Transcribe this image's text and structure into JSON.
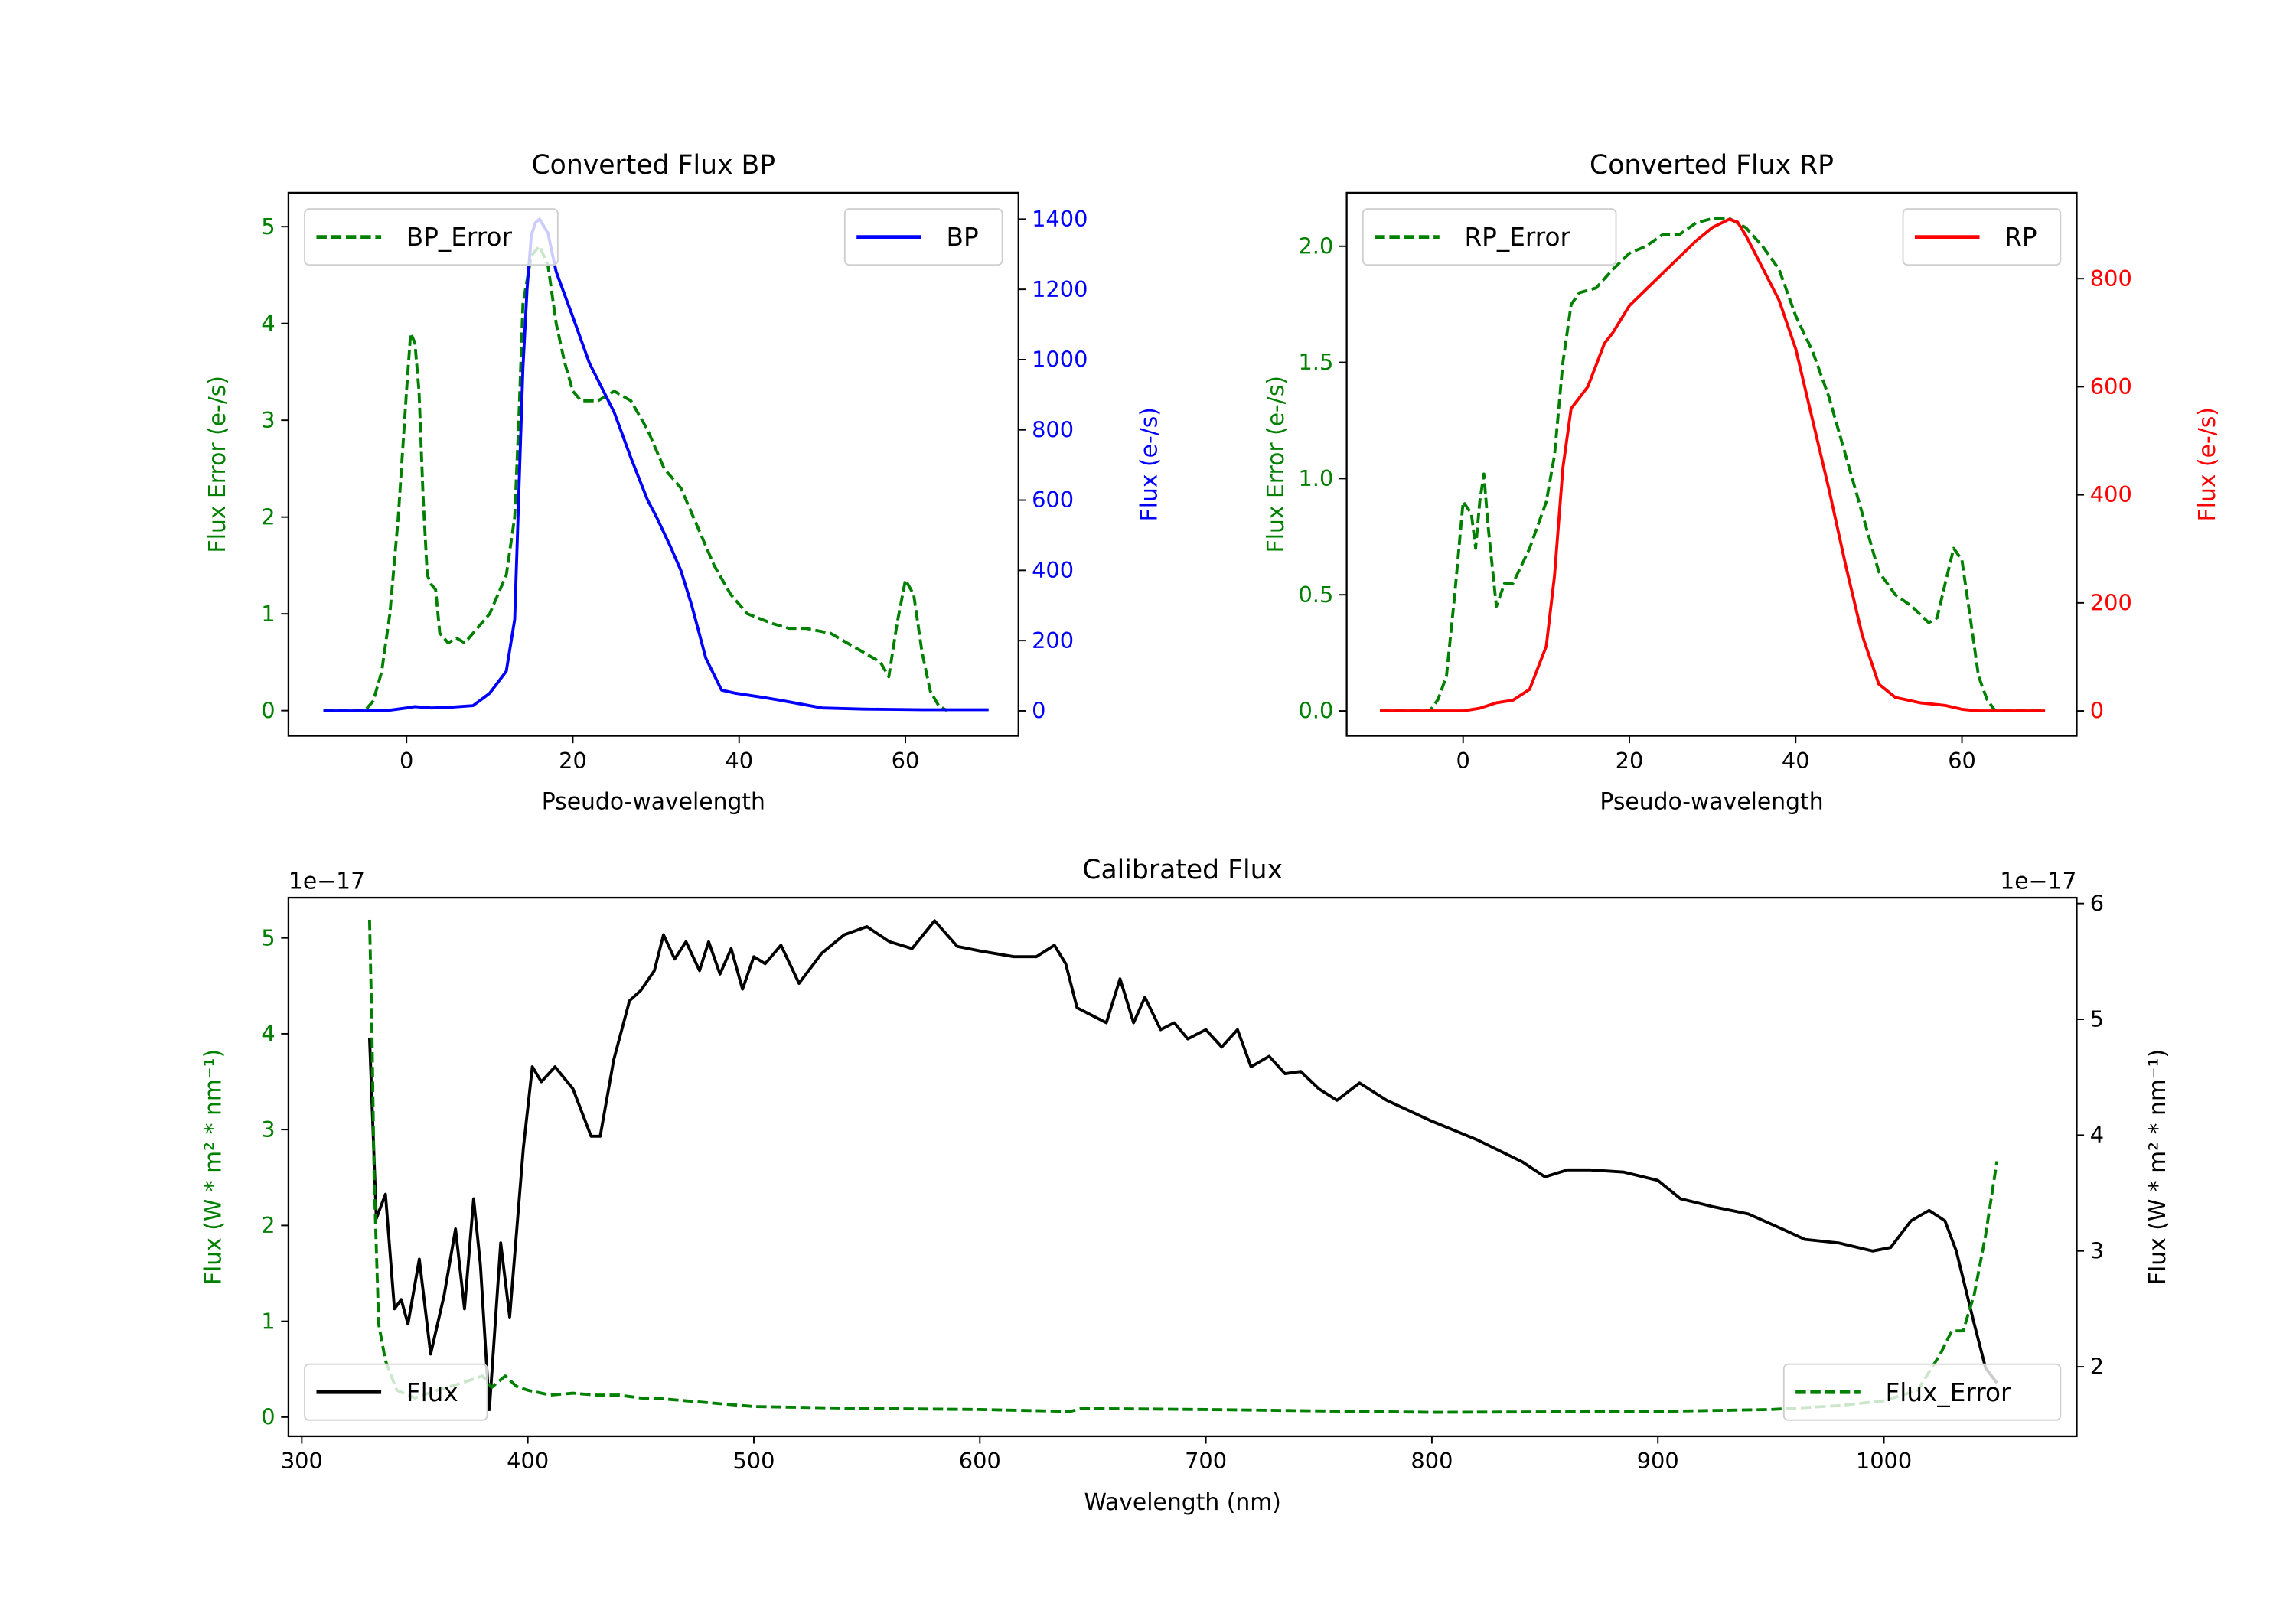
{
  "chart_data": [
    {
      "type": "line",
      "title": "Converted Flux BP",
      "xlabel": "Pseudo-wavelength",
      "ylabel": "Flux Error (e-/s)",
      "ylabel_right": "Flux (e-/s)",
      "xlim": [
        -14.2,
        73.6
      ],
      "ylim": [
        -0.26,
        5.35
      ],
      "ylim_right": [
        -71,
        1475
      ],
      "xticks": [
        0,
        20,
        40,
        60
      ],
      "yticks": [
        0,
        1,
        2,
        3,
        4,
        5
      ],
      "yticks_right": [
        0,
        200,
        400,
        600,
        800,
        1000,
        1200,
        1400
      ],
      "left_color": "#008000",
      "right_color": "#0000ff",
      "series": [
        {
          "name": "BP_Error",
          "axis": "left",
          "color": "#008000",
          "style": "dashed",
          "legend": "top-left",
          "x": [
            -10,
            -5,
            -4,
            -3,
            -2,
            -1,
            0,
            0.5,
            1,
            1.5,
            2,
            2.5,
            3,
            3.5,
            4,
            5,
            6,
            7,
            8,
            10,
            12,
            13,
            13.5,
            14,
            15,
            16,
            17,
            18,
            19,
            20,
            21,
            23,
            25,
            27,
            29,
            31,
            33,
            35,
            37,
            39,
            41,
            44,
            46,
            48,
            51,
            53,
            55,
            57,
            58,
            59,
            60,
            61,
            62,
            63,
            64,
            65
          ],
          "y": [
            0,
            0,
            0.1,
            0.4,
            1.0,
            2.0,
            3.3,
            3.9,
            3.8,
            3.3,
            2.2,
            1.4,
            1.3,
            1.25,
            0.8,
            0.7,
            0.75,
            0.7,
            0.8,
            1.0,
            1.4,
            2.0,
            3.0,
            4.2,
            4.7,
            4.8,
            4.6,
            4.0,
            3.6,
            3.3,
            3.2,
            3.2,
            3.3,
            3.2,
            2.9,
            2.5,
            2.3,
            1.9,
            1.5,
            1.2,
            1.0,
            0.9,
            0.85,
            0.85,
            0.8,
            0.7,
            0.6,
            0.5,
            0.35,
            0.9,
            1.35,
            1.2,
            0.6,
            0.2,
            0.05,
            0
          ]
        },
        {
          "name": "BP",
          "axis": "right",
          "color": "#0000ff",
          "style": "solid",
          "legend": "top-right",
          "x": [
            -10,
            -5,
            -2,
            0,
            1,
            3,
            5,
            8,
            10,
            12,
            13,
            14,
            14.5,
            15,
            15.5,
            16,
            17,
            18,
            20,
            22,
            25,
            27,
            29,
            30,
            31.7,
            33,
            34.3,
            36,
            37.9,
            39.6,
            43,
            45,
            50,
            55,
            59,
            62,
            65,
            70
          ],
          "y": [
            0,
            0,
            2,
            8,
            12,
            8,
            10,
            15,
            50,
            113,
            260,
            975,
            1200,
            1353,
            1390,
            1400,
            1360,
            1250,
            1122,
            990,
            849,
            720,
            600,
            555,
            470,
            400,
            300,
            150,
            59,
            50,
            38,
            30,
            8,
            5,
            4,
            3,
            3,
            3
          ]
        }
      ]
    },
    {
      "type": "line",
      "title": "Converted Flux RP",
      "xlabel": "Pseudo-wavelength",
      "ylabel": "Flux Error (e-/s)",
      "ylabel_right": "Flux (e-/s)",
      "xlim": [
        -14,
        73.8
      ],
      "ylim": [
        -0.107,
        2.23
      ],
      "ylim_right": [
        -46,
        959
      ],
      "xticks": [
        0,
        20,
        40,
        60
      ],
      "yticks": [
        "0.0",
        "0.5",
        "1.0",
        "1.5",
        "2.0"
      ],
      "yticks_right": [
        0,
        200,
        400,
        600,
        800
      ],
      "left_color": "#008000",
      "right_color": "#ff0000",
      "series": [
        {
          "name": "RP_Error",
          "axis": "left",
          "color": "#008000",
          "style": "dashed",
          "legend": "top-left",
          "x": [
            -10,
            -4,
            -3,
            -2,
            -1,
            0,
            1,
            1.5,
            2,
            2.5,
            3,
            4,
            5,
            6,
            8,
            10,
            11,
            12,
            13,
            14,
            16,
            18,
            20,
            22,
            24,
            26,
            28,
            30,
            32,
            34,
            36,
            38,
            40,
            42,
            44,
            46,
            48,
            50,
            52,
            54,
            56,
            57,
            58,
            59,
            60,
            61,
            62,
            63,
            64,
            70
          ],
          "y": [
            0,
            0,
            0.05,
            0.15,
            0.5,
            0.9,
            0.85,
            0.7,
            0.9,
            1.02,
            0.8,
            0.45,
            0.55,
            0.55,
            0.7,
            0.9,
            1.1,
            1.5,
            1.75,
            1.8,
            1.82,
            1.9,
            1.97,
            2.0,
            2.05,
            2.05,
            2.1,
            2.12,
            2.12,
            2.08,
            2.0,
            1.9,
            1.7,
            1.55,
            1.35,
            1.1,
            0.85,
            0.6,
            0.5,
            0.45,
            0.38,
            0.4,
            0.55,
            0.7,
            0.65,
            0.4,
            0.15,
            0.05,
            0,
            0
          ]
        },
        {
          "name": "RP",
          "axis": "right",
          "color": "#ff0000",
          "style": "solid",
          "legend": "top-right",
          "x": [
            -10,
            0,
            2,
            4,
            6,
            8,
            10,
            11,
            12,
            13,
            14,
            15,
            16,
            17,
            18,
            20,
            22,
            24,
            26,
            28,
            30,
            32,
            33,
            34,
            36,
            38,
            40,
            42,
            44,
            46,
            48,
            50,
            52,
            55,
            58,
            60,
            62,
            70
          ],
          "y": [
            0,
            0,
            5,
            15,
            20,
            40,
            120,
            250,
            450,
            560,
            580,
            600,
            640,
            680,
            700,
            750,
            780,
            810,
            840,
            870,
            895,
            910,
            905,
            880,
            820,
            760,
            670,
            540,
            410,
            270,
            140,
            50,
            25,
            15,
            10,
            3,
            0,
            0
          ]
        }
      ]
    },
    {
      "type": "line",
      "title": "Calibrated Flux",
      "xlabel": "Wavelength (nm)",
      "ylabel": "Flux (W * m² * nm⁻¹)",
      "ylabel_right": "Flux (W * m² * nm⁻¹)",
      "offset_left": "1e−17",
      "offset_right": "1e−17",
      "xlim": [
        294.1,
        1085.3
      ],
      "ylim": [
        -0.2,
        5.42
      ],
      "ylim_right": [
        1.4,
        6.05
      ],
      "xticks": [
        300,
        400,
        500,
        600,
        700,
        800,
        900,
        1000
      ],
      "yticks": [
        0,
        1,
        2,
        3,
        4,
        5
      ],
      "yticks_right": [
        2,
        3,
        4,
        5,
        6
      ],
      "left_color": "#008000",
      "right_color": "#000000",
      "series": [
        {
          "name": "Flux",
          "axis": "right",
          "color": "#000000",
          "style": "solid",
          "legend": "bottom-left",
          "x": [
            330,
            333,
            337,
            341,
            344,
            347,
            352,
            357,
            363,
            368,
            372,
            376,
            379,
            383,
            388,
            392,
            398,
            402,
            406,
            412,
            420,
            428,
            432,
            438,
            445,
            450,
            456,
            460,
            465,
            470,
            476,
            480,
            485,
            490,
            495,
            500,
            505,
            512,
            520,
            530,
            540,
            550,
            560,
            570,
            580,
            590,
            600,
            615,
            625,
            633,
            638,
            643,
            650,
            656,
            662,
            668,
            673,
            680,
            686,
            692,
            700,
            707,
            714,
            720,
            728,
            735,
            742,
            750,
            758,
            768,
            780,
            800,
            820,
            840,
            850,
            860,
            870,
            885,
            900,
            910,
            925,
            940,
            955,
            965,
            980,
            995,
            1003,
            1012,
            1020,
            1027,
            1032,
            1040,
            1045,
            1050
          ],
          "y": [
            4.84,
            3.28,
            3.49,
            2.5,
            2.58,
            2.37,
            2.93,
            2.11,
            2.62,
            3.19,
            2.5,
            3.45,
            2.88,
            1.63,
            3.07,
            2.43,
            3.89,
            4.59,
            4.46,
            4.59,
            4.4,
            3.99,
            3.99,
            4.65,
            5.16,
            5.25,
            5.42,
            5.73,
            5.52,
            5.67,
            5.42,
            5.67,
            5.39,
            5.61,
            5.26,
            5.54,
            5.48,
            5.64,
            5.31,
            5.57,
            5.73,
            5.8,
            5.67,
            5.61,
            5.85,
            5.63,
            5.59,
            5.54,
            5.54,
            5.64,
            5.48,
            5.1,
            5.03,
            4.97,
            5.35,
            4.97,
            5.19,
            4.91,
            4.97,
            4.83,
            4.91,
            4.76,
            4.91,
            4.59,
            4.68,
            4.53,
            4.55,
            4.4,
            4.3,
            4.45,
            4.3,
            4.12,
            3.96,
            3.77,
            3.64,
            3.7,
            3.7,
            3.68,
            3.61,
            3.45,
            3.38,
            3.32,
            3.19,
            3.1,
            3.07,
            3.0,
            3.03,
            3.26,
            3.35,
            3.26,
            3.0,
            2.37,
            1.99,
            1.86
          ]
        },
        {
          "name": "Flux_Error",
          "axis": "left",
          "color": "#008000",
          "style": "dashed",
          "legend": "bottom-right",
          "x": [
            330,
            331,
            332,
            334,
            337,
            342,
            350,
            360,
            370,
            380,
            384,
            390,
            395,
            400,
            410,
            420,
            430,
            440,
            450,
            460,
            480,
            500,
            550,
            600,
            640,
            645,
            700,
            800,
            900,
            950,
            980,
            1000,
            1015,
            1025,
            1030,
            1035,
            1040,
            1045,
            1050
          ],
          "y": [
            5.19,
            4.06,
            2.5,
            0.97,
            0.59,
            0.28,
            0.2,
            0.28,
            0.35,
            0.43,
            0.31,
            0.43,
            0.32,
            0.28,
            0.23,
            0.25,
            0.23,
            0.23,
            0.2,
            0.19,
            0.15,
            0.11,
            0.09,
            0.08,
            0.06,
            0.09,
            0.08,
            0.05,
            0.06,
            0.08,
            0.12,
            0.17,
            0.28,
            0.66,
            0.9,
            0.9,
            1.28,
            1.9,
            2.67
          ]
        }
      ]
    }
  ]
}
